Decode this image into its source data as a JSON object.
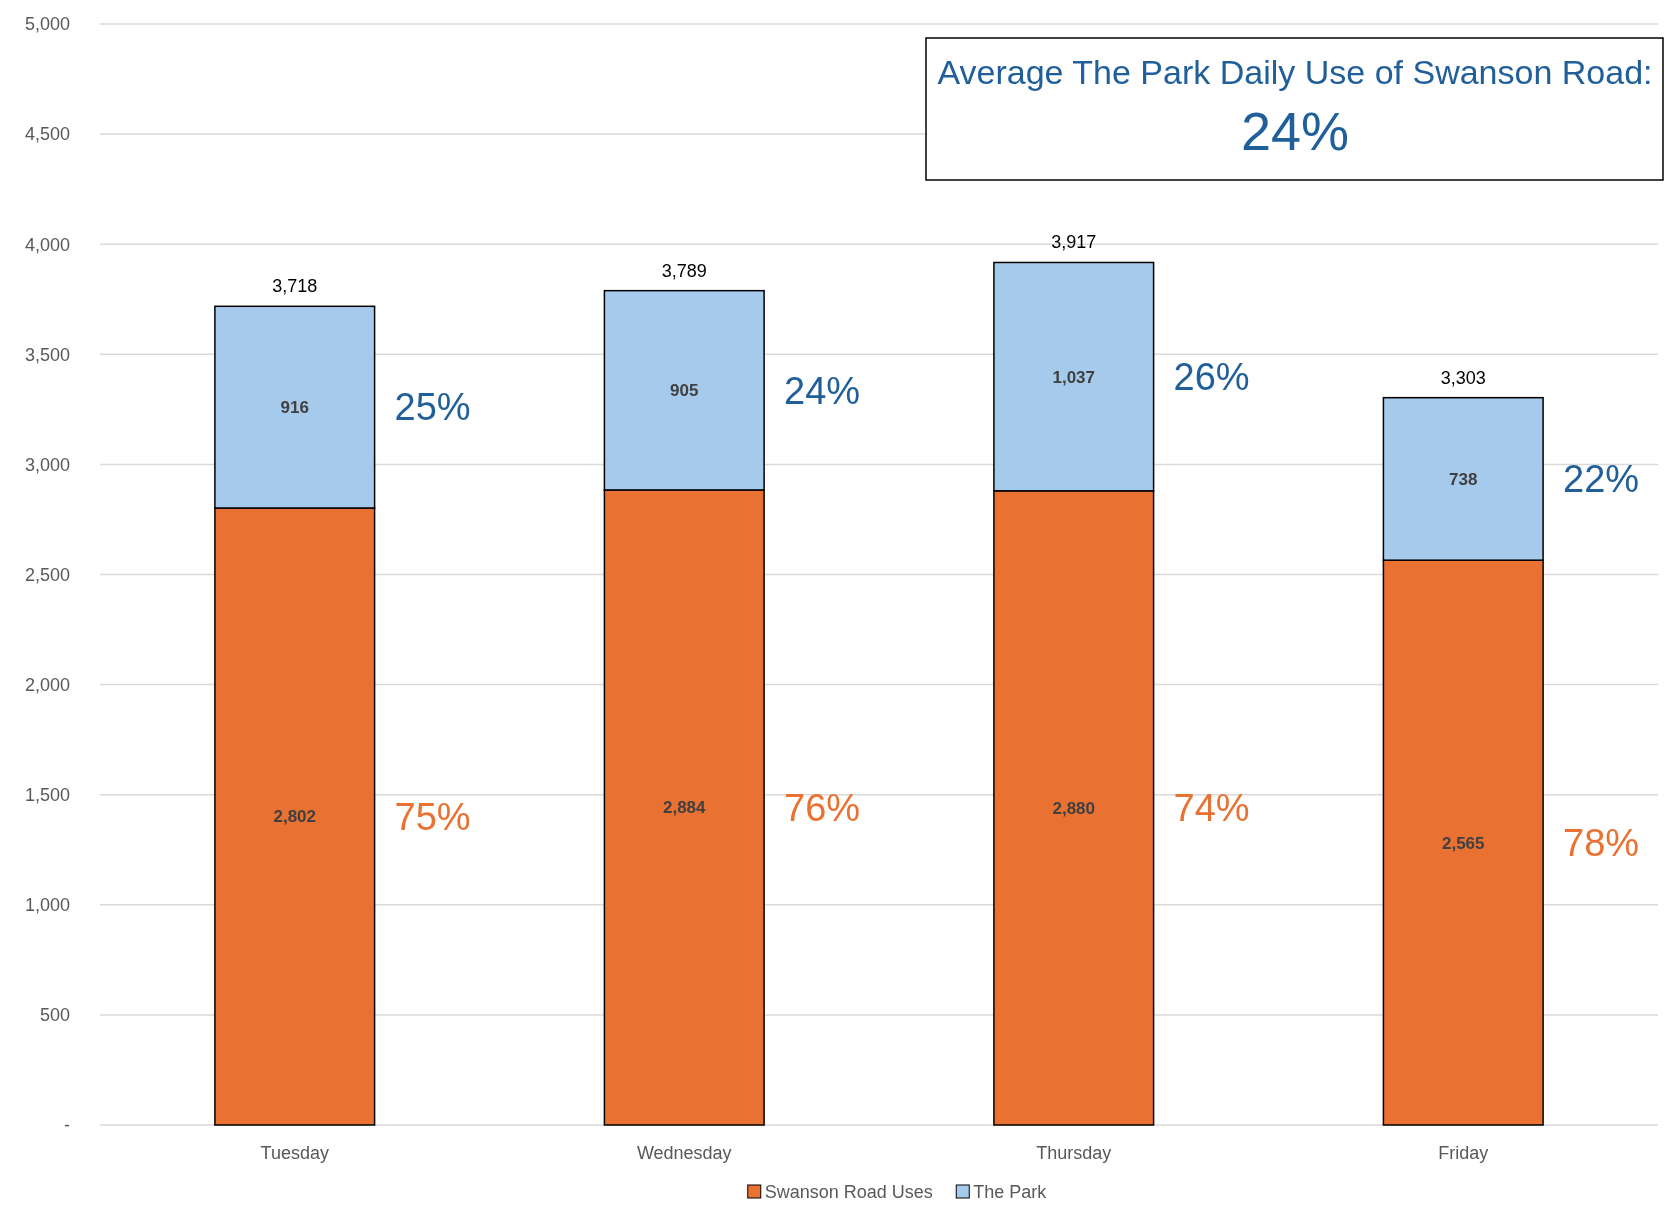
{
  "chart_data": {
    "type": "bar",
    "stacked": true,
    "categories": [
      "Tuesday",
      "Wednesday",
      "Thursday",
      "Friday"
    ],
    "series": [
      {
        "name": "Swanson Road Uses",
        "color": "#e97132",
        "values": [
          2802,
          2884,
          2880,
          2565
        ],
        "value_labels": [
          "2,802",
          "2,884",
          "2,880",
          "2,565"
        ]
      },
      {
        "name": "The Park",
        "color": "#a6caec",
        "values": [
          916,
          905,
          1037,
          738
        ],
        "value_labels": [
          "916",
          "905",
          "1,037",
          "738"
        ]
      }
    ],
    "ylim": [
      0,
      5000
    ],
    "yticks": [
      {
        "value": 0,
        "label": "-"
      },
      {
        "value": 500,
        "label": "500"
      },
      {
        "value": 1000,
        "label": "1,000"
      },
      {
        "value": 1500,
        "label": "1,500"
      },
      {
        "value": 2000,
        "label": "2,000"
      },
      {
        "value": 2500,
        "label": "2,500"
      },
      {
        "value": 3000,
        "label": "3,000"
      },
      {
        "value": 3500,
        "label": "3,500"
      },
      {
        "value": 4000,
        "label": "4,000"
      },
      {
        "value": 4500,
        "label": "4,500"
      },
      {
        "value": 5000,
        "label": "5,000"
      }
    ],
    "grid": "y",
    "legend": "bottom",
    "totals": [
      "3,718",
      "3,789",
      "3,917",
      "3,303"
    ],
    "annotations": [
      "Average The Park Daily Use of Swanson Road:",
      "24%",
      "25%",
      "75%",
      "24%",
      "76%",
      "26%",
      "74%",
      "22%",
      "78%"
    ]
  }
}
